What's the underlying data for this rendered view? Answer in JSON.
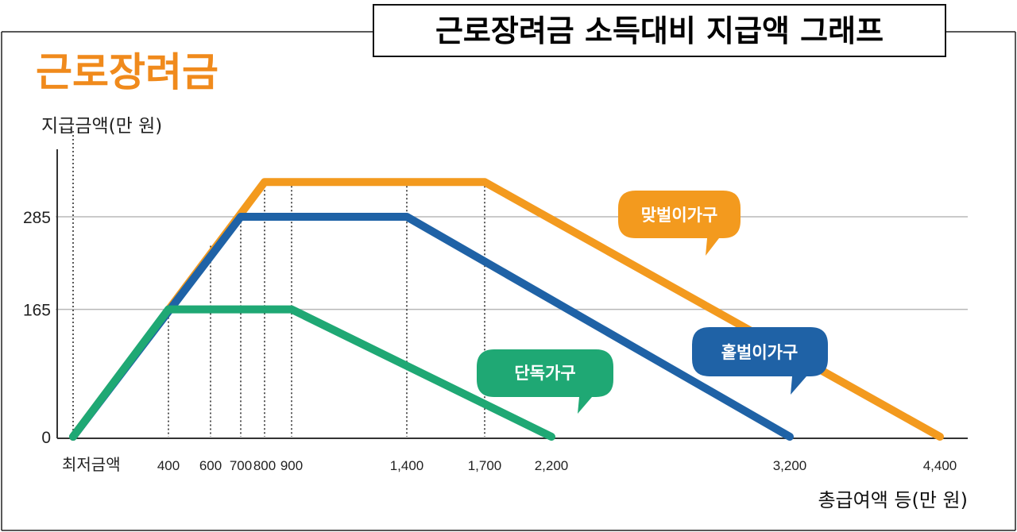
{
  "header_title": "근로장려금 소득대비 지급액 그래프",
  "brand_title": "근로장려금",
  "colors": {
    "brand": "#F08A1C",
    "grid": "#b8b8b8",
    "axis": "#333333"
  },
  "chart_data": {
    "type": "line",
    "ylabel": "지급금액(만 원)",
    "xlabel": "총급여액 등(만 원)",
    "x_ticks": [
      {
        "label": "최저금액",
        "value": 0
      },
      {
        "label": "400",
        "value": 400
      },
      {
        "label": "600",
        "value": 600
      },
      {
        "label": "700",
        "value": 700
      },
      {
        "label": "800",
        "value": 800
      },
      {
        "label": "900",
        "value": 900
      },
      {
        "label": "1,400",
        "value": 1400
      },
      {
        "label": "1,700",
        "value": 1700
      },
      {
        "label": "2,200",
        "value": 2200
      },
      {
        "label": "3,200",
        "value": 3200
      },
      {
        "label": "4,400",
        "value": 4400
      }
    ],
    "y_ticks": [
      {
        "label": "0",
        "value": 0
      },
      {
        "label": "165",
        "value": 165
      },
      {
        "label": "285",
        "value": 285
      }
    ],
    "ylim": [
      0,
      400
    ],
    "gridlines_y": [
      165,
      285
    ],
    "series": [
      {
        "name": "맞벌이가구",
        "color": "#F39A1E",
        "points": [
          [
            0,
            0
          ],
          [
            800,
            330
          ],
          [
            1700,
            330
          ],
          [
            4400,
            0
          ]
        ]
      },
      {
        "name": "홑벌이가구",
        "color": "#1F62A6",
        "points": [
          [
            0,
            0
          ],
          [
            700,
            285
          ],
          [
            1400,
            285
          ],
          [
            3200,
            0
          ]
        ]
      },
      {
        "name": "단독가구",
        "color": "#1FA874",
        "points": [
          [
            0,
            0
          ],
          [
            400,
            165
          ],
          [
            900,
            165
          ],
          [
            2200,
            0
          ]
        ]
      }
    ]
  }
}
